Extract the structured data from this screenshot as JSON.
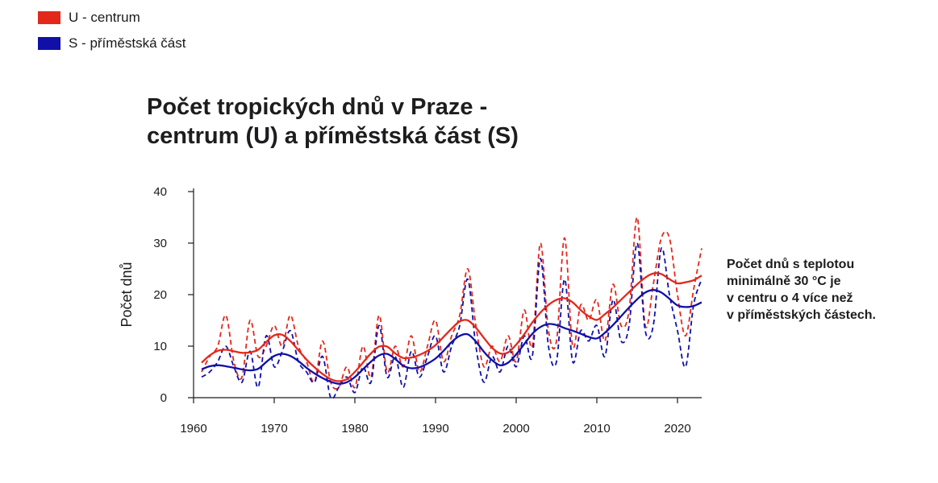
{
  "legend": [
    {
      "label": "U - centrum",
      "color": "#e3281b"
    },
    {
      "label": "S - příměstská část",
      "color": "#1010a8"
    }
  ],
  "title_lines": [
    "Počet tropických dnů v Praze -",
    "centrum (U) a příměstská část (S)"
  ],
  "annotation_lines": [
    "Počet dnů s teplotou",
    "minimálně 30 °C je",
    "v centru o 4 více než",
    "v příměstských částech."
  ],
  "chart_data": {
    "type": "line",
    "title": "Počet tropických dnů v Praze - centrum (U) a příměstská část (S)",
    "xlabel": "",
    "ylabel": "Počet dnů",
    "xlim": [
      1960,
      2023
    ],
    "ylim": [
      0,
      40
    ],
    "x_ticks": [
      1960,
      1970,
      1980,
      1990,
      2000,
      2010,
      2020
    ],
    "y_ticks": [
      0,
      10,
      20,
      30,
      40
    ],
    "grid": false,
    "legend_position": "top-left",
    "x": [
      1961,
      1962,
      1963,
      1964,
      1965,
      1966,
      1967,
      1968,
      1969,
      1970,
      1971,
      1972,
      1973,
      1974,
      1975,
      1976,
      1977,
      1978,
      1979,
      1980,
      1981,
      1982,
      1983,
      1984,
      1985,
      1986,
      1987,
      1988,
      1989,
      1990,
      1991,
      1992,
      1993,
      1994,
      1995,
      1996,
      1997,
      1998,
      1999,
      2000,
      2001,
      2002,
      2003,
      2004,
      2005,
      2006,
      2007,
      2008,
      2009,
      2010,
      2011,
      2012,
      2013,
      2014,
      2015,
      2016,
      2017,
      2018,
      2019,
      2020,
      2021,
      2022,
      2023
    ],
    "series": [
      {
        "name": "U - centrum",
        "color": "#e3281b",
        "style": "dashed",
        "values": [
          5,
          8,
          10,
          16,
          7,
          4,
          15,
          8,
          10,
          14,
          10,
          16,
          10,
          7,
          3,
          11,
          3,
          2,
          6,
          2,
          10,
          4,
          16,
          5,
          10,
          6,
          12,
          5,
          10,
          15,
          7,
          12,
          16,
          25,
          14,
          6,
          10,
          7,
          12,
          7,
          17,
          10,
          30,
          13,
          11,
          31,
          10,
          18,
          15,
          19,
          11,
          22,
          14,
          17,
          35,
          14,
          22,
          31,
          31,
          20,
          12,
          21,
          29
        ]
      },
      {
        "name": "S - příměstská část",
        "color": "#1010a8",
        "style": "dashed",
        "values": [
          4,
          5,
          7,
          10,
          6,
          3,
          9,
          2,
          12,
          6,
          9,
          13,
          7,
          5,
          3,
          8,
          0,
          2,
          4,
          1,
          6,
          3,
          14,
          4,
          8,
          2,
          9,
          4,
          8,
          12,
          5,
          10,
          14,
          23,
          10,
          3,
          8,
          5,
          10,
          6,
          12,
          8,
          27,
          10,
          7,
          23,
          7,
          13,
          11,
          14,
          8,
          19,
          11,
          14,
          30,
          13,
          14,
          29,
          20,
          13,
          6,
          18,
          23
        ]
      },
      {
        "name": "U - centrum",
        "color": "#e3281b",
        "style": "trend",
        "values": [
          6.8,
          8.2,
          9.1,
          9.3,
          9.0,
          8.7,
          8.8,
          9.3,
          10.8,
          12.1,
          12.2,
          11.0,
          9.2,
          7.4,
          5.9,
          4.6,
          3.6,
          3.2,
          3.6,
          5.0,
          6.8,
          8.6,
          9.9,
          9.9,
          8.6,
          7.7,
          7.8,
          8.3,
          9.1,
          10.2,
          11.8,
          13.4,
          14.8,
          15.0,
          13.6,
          11.6,
          9.7,
          8.6,
          8.8,
          10.3,
          12.3,
          14.6,
          16.5,
          18.0,
          19.0,
          19.3,
          18.5,
          17.0,
          15.8,
          15.1,
          16.2,
          17.5,
          19.0,
          20.5,
          22.0,
          23.3,
          24.1,
          24.0,
          23.0,
          22.2,
          22.4,
          22.8,
          23.7
        ]
      },
      {
        "name": "S - příměstská část",
        "color": "#1010a8",
        "style": "trend",
        "values": [
          5.5,
          6.1,
          6.3,
          6.1,
          5.8,
          5.5,
          5.3,
          5.6,
          6.9,
          8.1,
          8.5,
          8.1,
          7.1,
          5.8,
          4.7,
          3.8,
          3.1,
          2.7,
          3.0,
          4.0,
          5.5,
          7.0,
          8.2,
          8.5,
          7.5,
          6.2,
          5.7,
          5.9,
          6.6,
          7.6,
          9.1,
          10.8,
          12.0,
          12.3,
          10.9,
          8.9,
          7.3,
          6.3,
          6.8,
          8.4,
          10.4,
          12.4,
          13.7,
          14.3,
          14.1,
          13.5,
          13.0,
          12.4,
          11.8,
          11.5,
          12.6,
          14.1,
          15.8,
          17.5,
          19.1,
          20.4,
          20.9,
          20.4,
          19.2,
          17.9,
          17.6,
          17.8,
          18.5
        ]
      }
    ]
  }
}
